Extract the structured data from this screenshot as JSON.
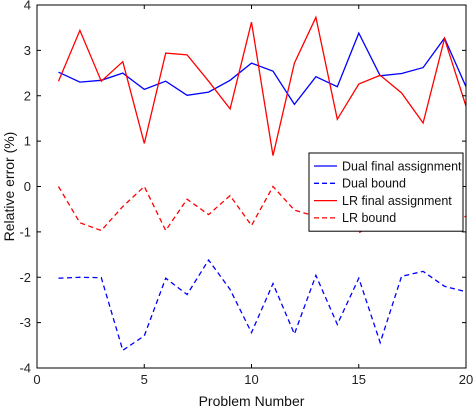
{
  "chart_data": {
    "type": "line",
    "title": "",
    "xlabel": "Problem Number",
    "ylabel": "Relative error (%)",
    "xlim": [
      0,
      20
    ],
    "ylim": [
      -4,
      4
    ],
    "xticks": [
      0,
      5,
      10,
      15,
      20
    ],
    "yticks": [
      -4,
      -3,
      -2,
      -1,
      0,
      1,
      2,
      3,
      4
    ],
    "grid": false,
    "legend_position": "center-right",
    "x": [
      1,
      2,
      3,
      4,
      5,
      6,
      7,
      8,
      9,
      10,
      11,
      12,
      13,
      14,
      15,
      16,
      17,
      18,
      19,
      20
    ],
    "series": [
      {
        "name": "Dual final assignment",
        "color": "#0000ff",
        "dash": "solid",
        "values": [
          2.52,
          2.3,
          2.34,
          2.5,
          2.14,
          2.32,
          2.01,
          2.08,
          2.34,
          2.72,
          2.54,
          1.81,
          2.42,
          2.2,
          3.38,
          2.44,
          2.49,
          2.62,
          3.27,
          2.2
        ]
      },
      {
        "name": "Dual bound",
        "color": "#0000ff",
        "dash": "dashed",
        "values": [
          -2.02,
          -2.0,
          -2.01,
          -3.61,
          -3.29,
          -2.02,
          -2.38,
          -1.62,
          -2.27,
          -3.22,
          -2.14,
          -3.25,
          -1.96,
          -3.04,
          -2.02,
          -3.44,
          -1.98,
          -1.87,
          -2.2,
          -2.32
        ]
      },
      {
        "name": "LR final assignment",
        "color": "#ff0000",
        "dash": "solid",
        "values": [
          2.32,
          3.44,
          2.32,
          2.75,
          0.95,
          2.94,
          2.9,
          2.32,
          1.71,
          3.62,
          0.68,
          2.72,
          3.73,
          1.48,
          2.26,
          2.45,
          2.06,
          1.4,
          3.26,
          1.77
        ]
      },
      {
        "name": "LR bound",
        "color": "#ff0000",
        "dash": "dashed",
        "values": [
          0.0,
          -0.8,
          -0.97,
          -0.44,
          0.0,
          -0.97,
          -0.28,
          -0.62,
          -0.2,
          -0.86,
          0.0,
          -0.52,
          -0.66,
          -0.5,
          -1.02,
          -0.74,
          -0.58,
          -0.36,
          -0.93,
          -0.65
        ]
      }
    ]
  }
}
